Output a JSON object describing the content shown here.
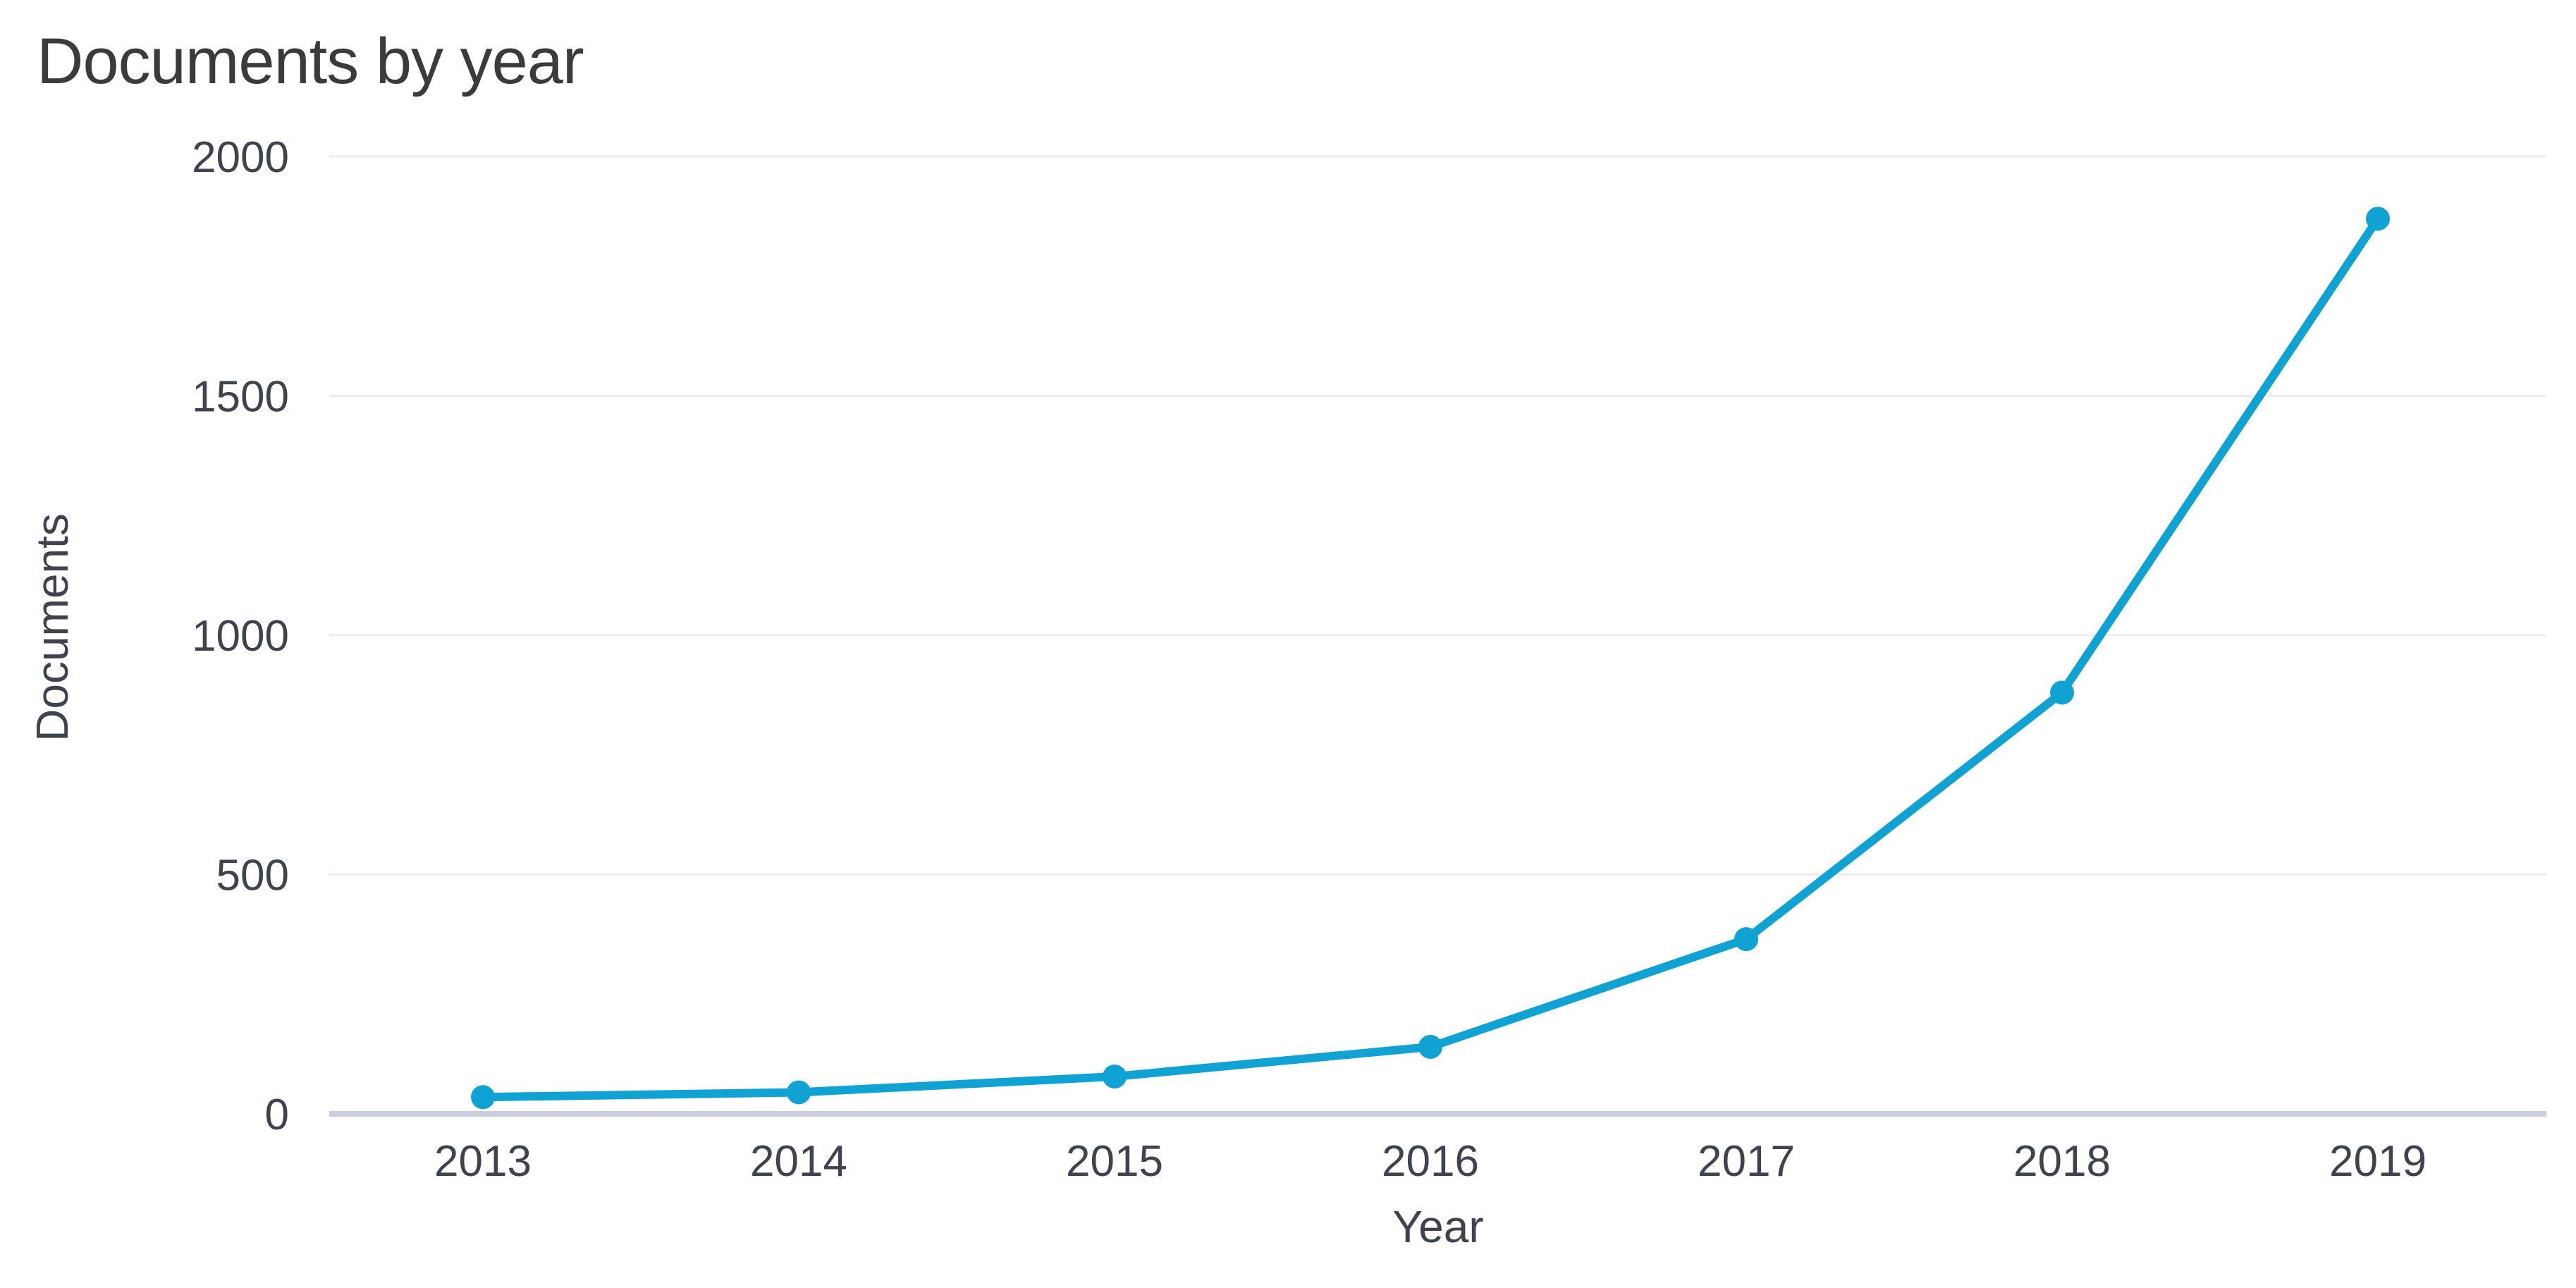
{
  "chart_data": {
    "type": "line",
    "title": "Documents by year",
    "xlabel": "Year",
    "ylabel": "Documents",
    "x": [
      2013,
      2014,
      2015,
      2016,
      2017,
      2018,
      2019
    ],
    "series": [
      {
        "name": "Documents",
        "values": [
          35,
          45,
          78,
          140,
          365,
          880,
          1870
        ]
      }
    ],
    "ylim": [
      0,
      2000
    ],
    "yticks": [
      0,
      500,
      1000,
      1500,
      2000
    ],
    "grid": "horizontal",
    "legend": "none",
    "line_color": "#0FA2D3",
    "marker": "circle",
    "background_color": "#FFFFFF",
    "gridline_color": "#ECECEC",
    "axis_line_color": "#C9CEDA",
    "text_color": "#3E434D",
    "title_color": "#3B3B3D"
  }
}
